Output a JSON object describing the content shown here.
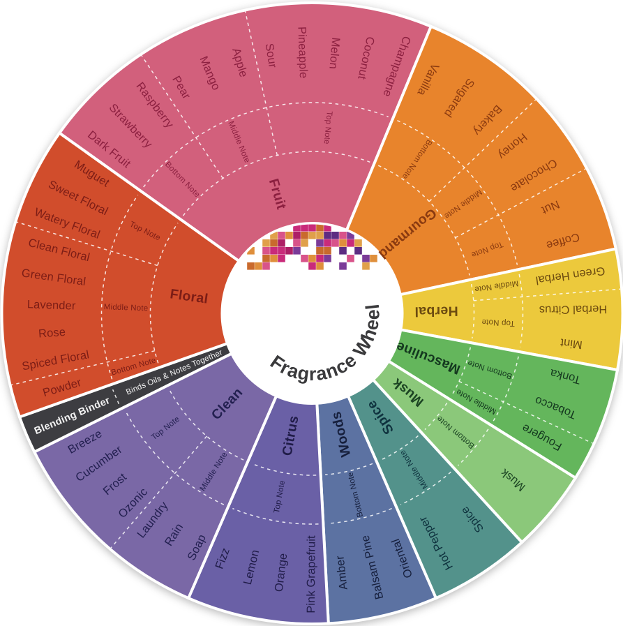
{
  "title": "Fragrance Wheel",
  "center": {
    "label": "Fragrance Wheel",
    "label_color": "#3a3a3c",
    "mosaic_colors": [
      "#c92a7a",
      "#ad1f66",
      "#df8f3c",
      "#7b3b98",
      "#5d2c82",
      "#d8538a",
      "#c96a2d",
      "#e0a04a"
    ]
  },
  "wheel": {
    "segments": [
      {
        "name": "Fruit",
        "color": "#d2607c",
        "text_color": "#8c2040",
        "start": -54.5,
        "end": 22.5,
        "groups": [
          {
            "note": "Bottom Note",
            "items": [
              "Dark Fruit",
              "Strawberry",
              "Raspberry"
            ]
          },
          {
            "note": "Middle Note",
            "items": [
              "Pear",
              "Mango",
              "Apple"
            ]
          },
          {
            "note": "Top Note",
            "items": [
              "Sour",
              "Pineapple",
              "Melon",
              "Coconut",
              "Champagne"
            ]
          }
        ]
      },
      {
        "name": "Gourmand",
        "color": "#e8842c",
        "text_color": "#8a3a10",
        "start": 22.5,
        "end": 78,
        "groups": [
          {
            "note": "Bottom Note",
            "items": [
              "Vanilla",
              "Sugared",
              "Bakery"
            ]
          },
          {
            "note": "Middle Note",
            "items": [
              "Honey",
              "Chocolate"
            ]
          },
          {
            "note": "Top Note",
            "items": [
              "Nut",
              "Coffee"
            ]
          }
        ]
      },
      {
        "name": "Herbal",
        "color": "#ecc93c",
        "text_color": "#6b4a10",
        "start": 78,
        "end": 100.5,
        "groups": [
          {
            "note": "Middle Note",
            "items": [
              "Green Herbal"
            ]
          },
          {
            "note": "Top Note",
            "items": [
              "Herbal Citrus",
              "Mint"
            ]
          }
        ]
      },
      {
        "name": "Masculine",
        "color": "#64b65c",
        "text_color": "#14381f",
        "start": 100.5,
        "end": 122,
        "groups": [
          {
            "note": "Bottom Note",
            "items": [
              "Tonka",
              "Tobacco"
            ]
          },
          {
            "note": "Middle Note",
            "items": [
              "Fougere"
            ]
          }
        ]
      },
      {
        "name": "Musk",
        "color": "#8bc87a",
        "text_color": "#1c4423",
        "start": 122,
        "end": 137.5,
        "groups": [
          {
            "note": "Bottom Note",
            "items": [
              "Musk"
            ]
          }
        ]
      },
      {
        "name": "Spice",
        "color": "#53928b",
        "text_color": "#0f323e",
        "start": 137.5,
        "end": 156.5,
        "groups": [
          {
            "note": "Middle Note",
            "items": [
              "Spice",
              "Hot Pepper"
            ]
          }
        ]
      },
      {
        "name": "Woods",
        "color": "#5c72a2",
        "text_color": "#161f3c",
        "start": 156.5,
        "end": 177,
        "groups": [
          {
            "note": "Bottom Note",
            "items": [
              "Oriental",
              "Balsam Pine",
              "Amber"
            ]
          }
        ]
      },
      {
        "name": "Citrus",
        "color": "#6a60a6",
        "text_color": "#201c48",
        "start": 177,
        "end": 203.5,
        "groups": [
          {
            "note": "Top Note",
            "items": [
              "Pink Grapefruit",
              "Orange",
              "Lemon",
              "Fizz"
            ]
          }
        ]
      },
      {
        "name": "Clean",
        "color": "#7a68a6",
        "text_color": "#232050",
        "start": 203.5,
        "end": 243.5,
        "groups": [
          {
            "note": "Middle Note",
            "items": [
              "Soap",
              "Rain",
              "Laundry"
            ]
          },
          {
            "note": "Top Note",
            "items": [
              "Ozonic",
              "Frost",
              "Cucumber",
              "Breeze"
            ]
          }
        ]
      },
      {
        "name": "Blending Binder",
        "binder": true,
        "color": "#3d3d41",
        "text_color": "#f2f2f2",
        "start": 243.5,
        "end": 250.5,
        "outer_label": "Blending Binder",
        "inner_label": "Binds Oils & Notes Together"
      },
      {
        "name": "Floral",
        "color": "#d14d2c",
        "text_color": "#7c1d16",
        "start": 250.5,
        "end": 305.5,
        "groups": [
          {
            "note": "Bottom Note",
            "items": [
              "Powder"
            ]
          },
          {
            "note": "Middle Note",
            "items": [
              "Spiced Floral",
              "Rose",
              "Lavender",
              "Green Floral",
              "Clean Floral"
            ]
          },
          {
            "note": "Top Note",
            "items": [
              "Watery Floral",
              "Sweet Floral",
              "Muguet"
            ]
          }
        ]
      }
    ]
  }
}
